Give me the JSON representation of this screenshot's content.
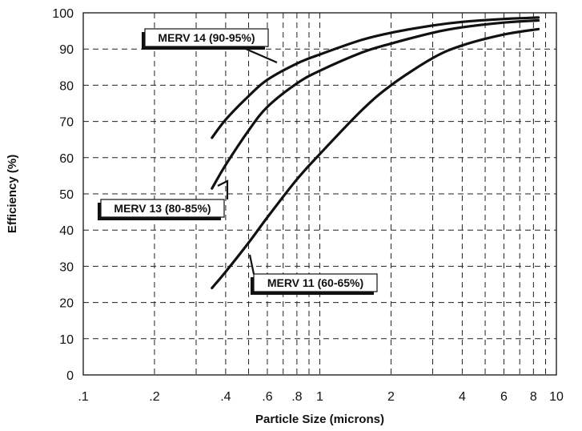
{
  "chart_data": {
    "type": "line",
    "title": "",
    "xlabel": "Particle Size (microns)",
    "ylabel": "Efficiency (%)",
    "xscale": "log",
    "xlim": [
      0.1,
      10
    ],
    "ylim": [
      0,
      100
    ],
    "grid": true,
    "x_ticks": [
      0.1,
      0.2,
      0.4,
      0.6,
      0.8,
      1,
      2,
      4,
      6,
      8,
      10
    ],
    "x_tick_labels": [
      ".1",
      ".2",
      ".4",
      ".6",
      ".8",
      "1",
      "2",
      "4",
      "6",
      "8",
      "10"
    ],
    "y_ticks": [
      0,
      10,
      20,
      30,
      40,
      50,
      60,
      70,
      80,
      90,
      100
    ],
    "y_tick_labels": [
      "0",
      "10",
      "20",
      "30",
      "40",
      "50",
      "60",
      "70",
      "80",
      "90",
      "100"
    ],
    "series": [
      {
        "name": "MERV 14 (90-95%)",
        "x": [
          0.35,
          0.4,
          0.5,
          0.6,
          0.8,
          1,
          1.5,
          2,
          3,
          4,
          6,
          8.4
        ],
        "y": [
          65.5,
          70.5,
          77,
          81.5,
          86,
          88.5,
          92.5,
          94.5,
          96.5,
          97.5,
          98.3,
          98.7
        ]
      },
      {
        "name": "MERV 13 (80-85%)",
        "x": [
          0.35,
          0.4,
          0.5,
          0.6,
          0.8,
          1,
          1.5,
          2,
          3,
          4,
          6,
          8.4
        ],
        "y": [
          51.5,
          58,
          67.5,
          74,
          80.5,
          84,
          89,
          91.5,
          94.5,
          96,
          97.3,
          97.9
        ]
      },
      {
        "name": "MERV 11 (60-65%)",
        "x": [
          0.35,
          0.4,
          0.5,
          0.6,
          0.8,
          1,
          1.5,
          2,
          3,
          4,
          6,
          8.4
        ],
        "y": [
          24,
          28.5,
          36.5,
          43.5,
          54,
          61,
          73,
          80,
          87.5,
          91,
          94,
          95.5
        ]
      }
    ],
    "annotations": [
      {
        "text": "MERV 14 (90-95%)",
        "series": 0
      },
      {
        "text": "MERV 13 (80-85%)",
        "series": 1
      },
      {
        "text": "MERV 11 (60-65%)",
        "series": 2
      }
    ]
  }
}
